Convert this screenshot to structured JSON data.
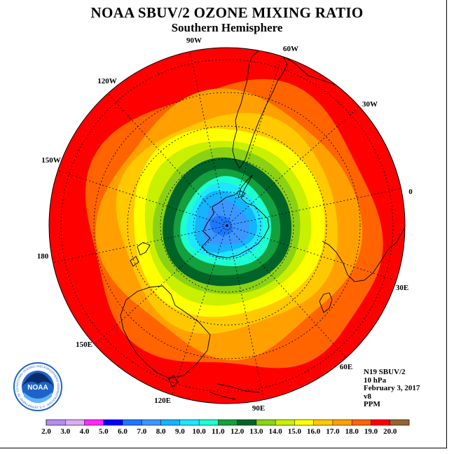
{
  "title": "NOAA SBUV/2 OZONE MIXING RATIO",
  "subtitle": "Southern Hemisphere",
  "longitude_labels": [
    "90W",
    "60W",
    "30W",
    "0",
    "30E",
    "60E",
    "90E",
    "120E",
    "150E",
    "180",
    "150W",
    "120W"
  ],
  "info": {
    "satellite": "N19 SBUV/2",
    "level": "10 hPa",
    "date": "February 3, 2017",
    "version": "v8",
    "units": "PPM"
  },
  "logo_text": "NOAA",
  "logo_ring_text": "NATIONAL OCEANIC AND ATMOSPHERIC ADMINISTRATION · U.S. DEPARTMENT OF COMMERCE",
  "colorbar": {
    "labels": [
      "2.0",
      "3.0",
      "4.0",
      "5.0",
      "6.0",
      "7.0",
      "8.0",
      "9.0",
      "10.0",
      "11.0",
      "12.0",
      "13.0",
      "14.0",
      "15.0",
      "16.0",
      "17.0",
      "18.0",
      "19.0",
      "20.0"
    ],
    "colors": [
      "#b48cf0",
      "#dcaaf5",
      "#ff28ff",
      "#0000ff",
      "#1e78ff",
      "#3c96ff",
      "#14b4ff",
      "#1ee6ff",
      "#1effd2",
      "#14a03c",
      "#006428",
      "#8cd214",
      "#c8f000",
      "#ffff00",
      "#ffc800",
      "#ffa000",
      "#ff6400",
      "#ff0000",
      "#966432"
    ]
  },
  "map_contours": {
    "levels_ppm": [
      19.0,
      18.0,
      17.0,
      16.0,
      15.0,
      14.0,
      13.0,
      12.0,
      11.0,
      10.0,
      9.0,
      8.0,
      7.0,
      6.0
    ],
    "fill_colors": [
      "#ff0000",
      "#ff6400",
      "#ffa000",
      "#ffc800",
      "#ffff00",
      "#c8f000",
      "#8cd214",
      "#006428",
      "#14a03c",
      "#1effd2",
      "#1ee6ff",
      "#14b4ff",
      "#3c96ff",
      "#1e78ff"
    ]
  }
}
